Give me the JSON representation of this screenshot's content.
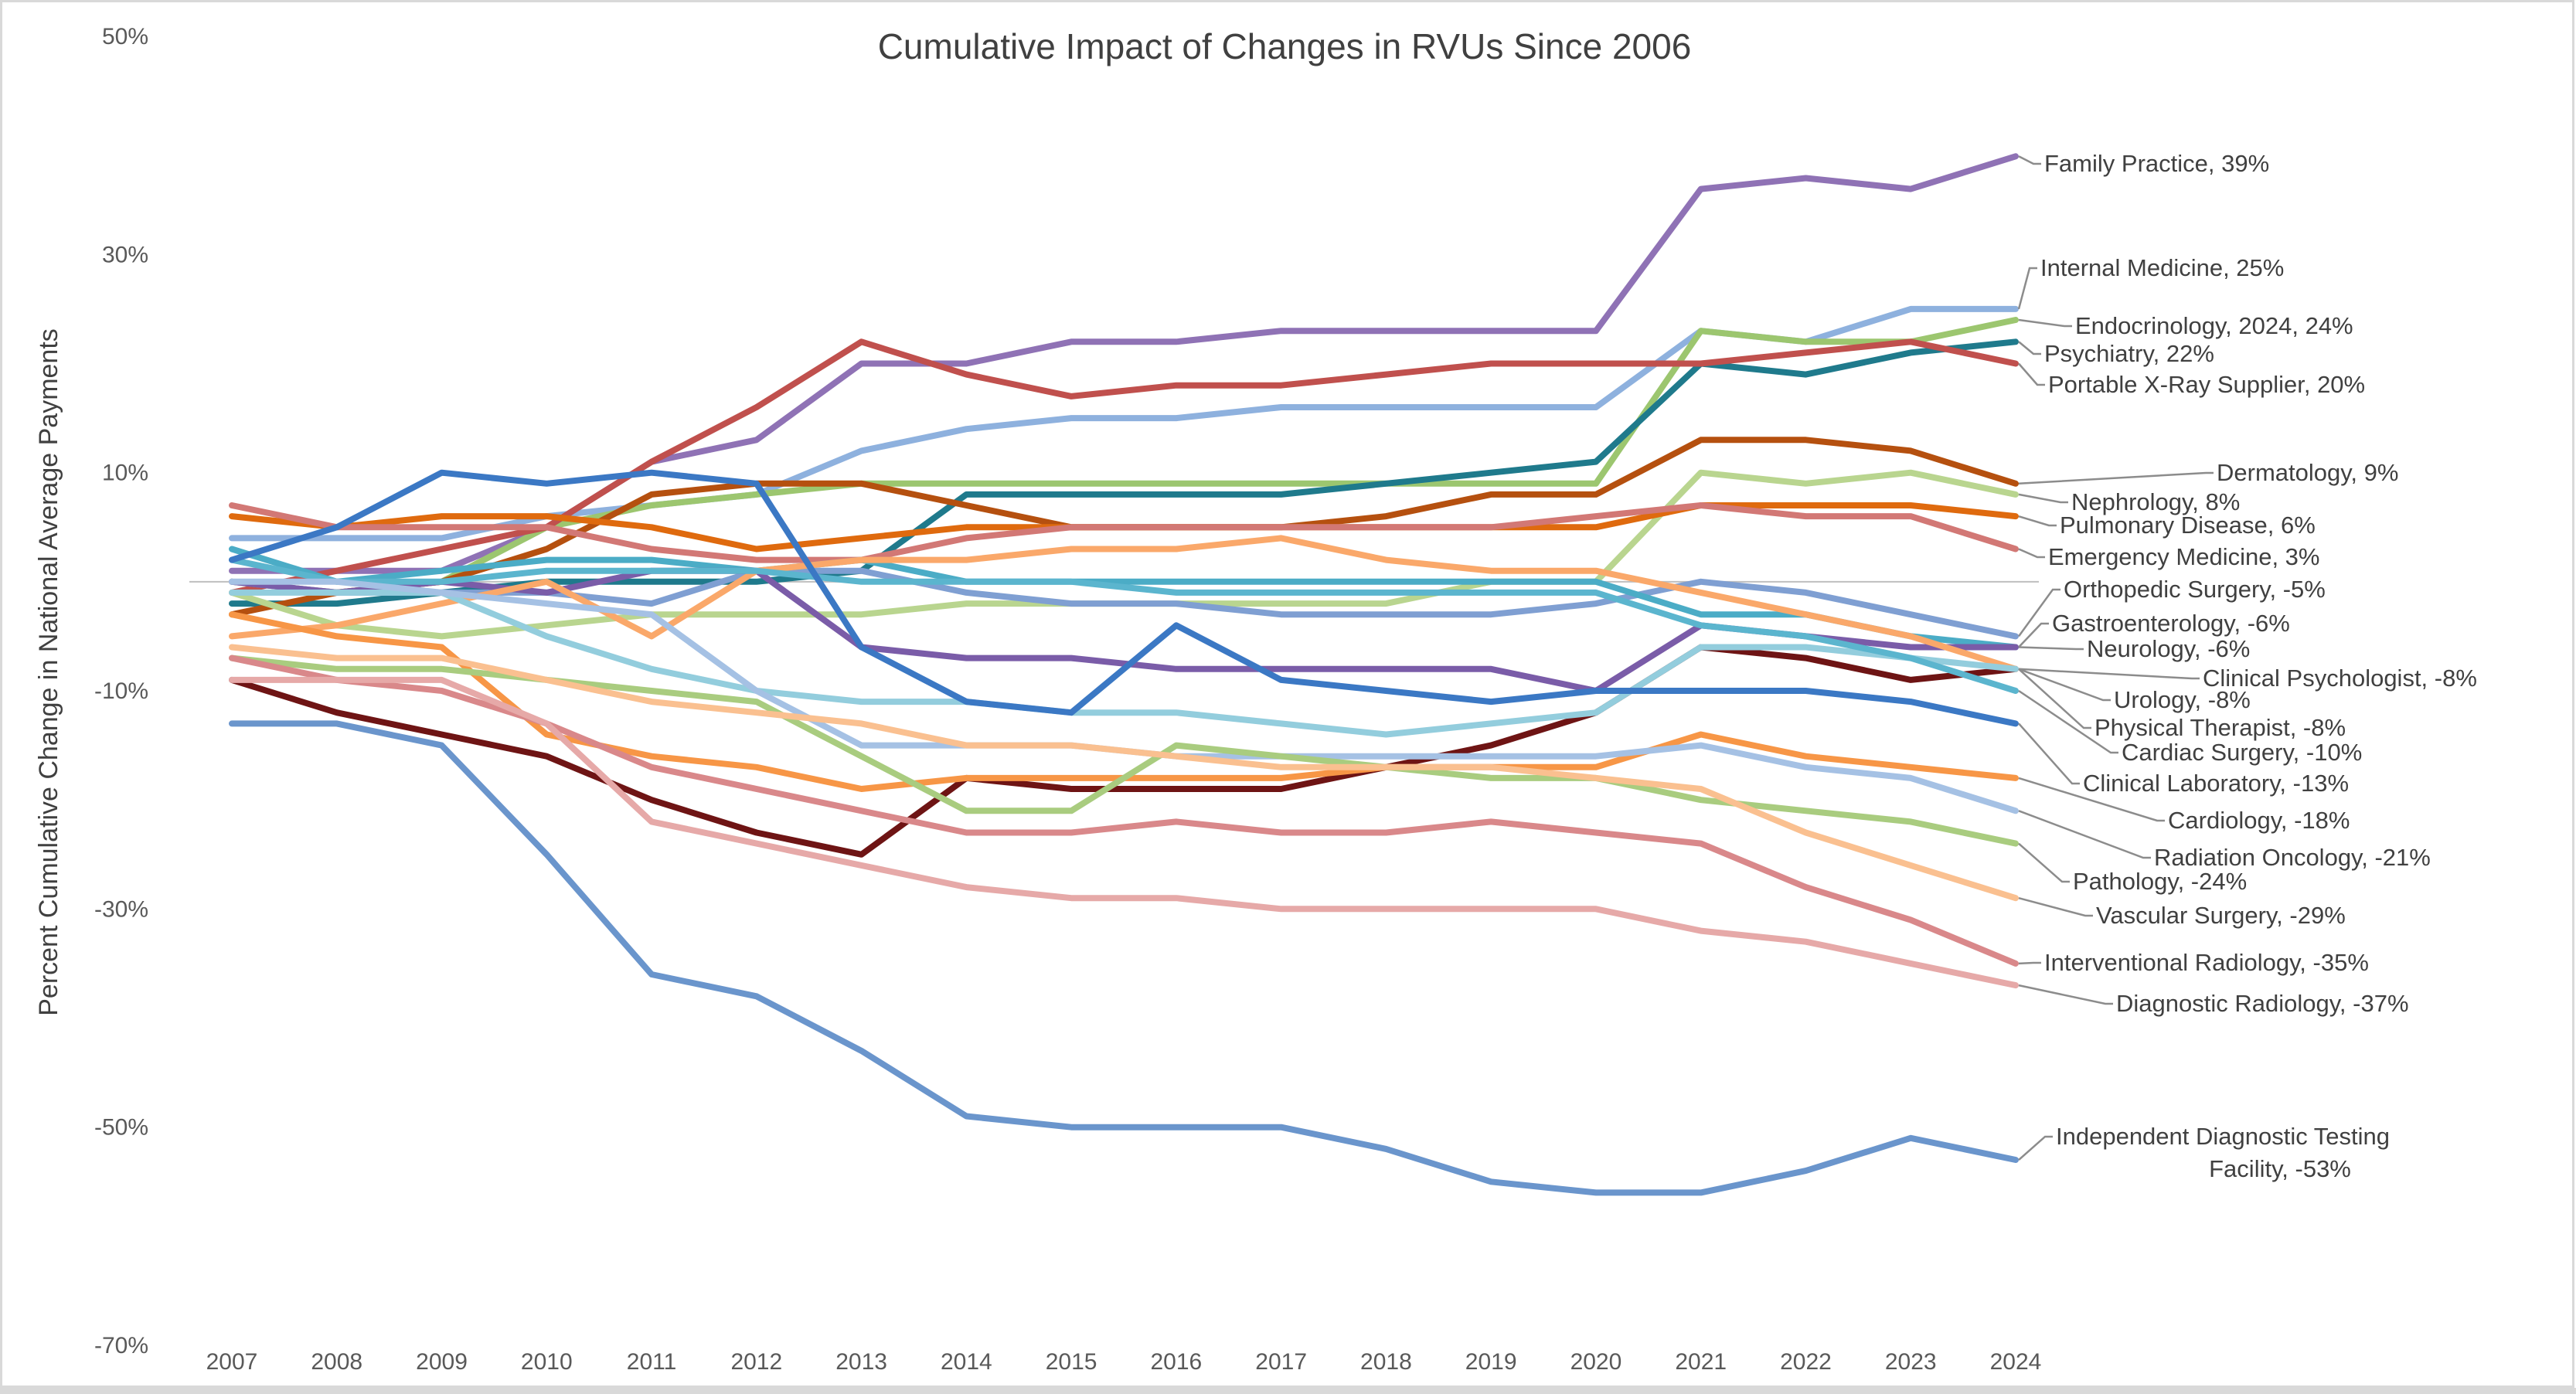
{
  "chart_data": {
    "type": "line",
    "title": "Cumulative Impact of Changes in RVUs Since 2006",
    "xlabel": "",
    "ylabel": "Percent Cumulative Change in National Average Payments",
    "ylim": [
      -70,
      50
    ],
    "yticks": [
      50,
      30,
      10,
      -10,
      -30,
      -50,
      -70
    ],
    "ytick_labels": [
      "50%",
      "30%",
      "10%",
      "-10%",
      "-30%",
      "-50%",
      "-70%"
    ],
    "grid": false,
    "zero_line": true,
    "legend": "data-labels-right",
    "x": [
      "2007",
      "2008",
      "2009",
      "2010",
      "2011",
      "2012",
      "2013",
      "2014",
      "2015",
      "2016",
      "2017",
      "2018",
      "2019",
      "2020",
      "2021",
      "2022",
      "2023",
      "2024"
    ],
    "series": [
      {
        "name": "Family Practice",
        "label": "Family Practice, 39%",
        "color": "#8F72B5",
        "values": [
          1,
          1,
          1,
          5,
          11,
          13,
          20,
          20,
          22,
          22,
          23,
          23,
          23,
          23,
          36,
          37,
          36,
          39
        ]
      },
      {
        "name": "Internal Medicine",
        "label": "Internal Medicine, 25%",
        "color": "#8EB1DE",
        "values": [
          4,
          4,
          4,
          6,
          7,
          8,
          12,
          14,
          15,
          15,
          16,
          16,
          16,
          16,
          23,
          22,
          25,
          25
        ]
      },
      {
        "name": "Endocrinology",
        "label": "Endocrinology, 2024, 24%",
        "color": "#9CC66F",
        "values": [
          0,
          -1,
          0,
          5,
          7,
          8,
          9,
          9,
          9,
          9,
          9,
          9,
          9,
          9,
          23,
          22,
          22,
          24
        ]
      },
      {
        "name": "Psychiatry",
        "label": "Psychiatry, 22%",
        "color": "#1F7A8C",
        "values": [
          -2,
          -2,
          -1,
          0,
          0,
          0,
          1,
          8,
          8,
          8,
          8,
          9,
          10,
          11,
          20,
          19,
          21,
          22
        ]
      },
      {
        "name": "Portable X-Ray Supplier",
        "label": "Portable X-Ray Supplier, 20%",
        "color": "#C0504D",
        "values": [
          -1,
          1,
          3,
          5,
          11,
          16,
          22,
          19,
          17,
          18,
          18,
          19,
          20,
          20,
          20,
          21,
          22,
          20
        ]
      },
      {
        "name": "Dermatology",
        "label": "Dermatology, 9%",
        "color": "#B5500F",
        "values": [
          -3,
          -1,
          0,
          3,
          8,
          9,
          9,
          7,
          5,
          5,
          5,
          6,
          8,
          8,
          13,
          13,
          12,
          9
        ]
      },
      {
        "name": "Nephrology",
        "label": "Nephrology, 8%",
        "color": "#B9D58F",
        "values": [
          -1,
          -4,
          -5,
          -4,
          -3,
          -3,
          -3,
          -2,
          -2,
          -2,
          -2,
          -2,
          0,
          0,
          10,
          9,
          10,
          8
        ]
      },
      {
        "name": "Pulmonary Disease",
        "label": "Pulmonary Disease, 6%",
        "color": "#DF6A0E",
        "values": [
          6,
          5,
          6,
          6,
          5,
          3,
          4,
          5,
          5,
          5,
          5,
          5,
          5,
          5,
          7,
          7,
          7,
          6
        ]
      },
      {
        "name": "Emergency Medicine",
        "label": "Emergency Medicine, 3%",
        "color": "#D27875",
        "values": [
          7,
          5,
          5,
          5,
          3,
          2,
          2,
          4,
          5,
          5,
          5,
          5,
          5,
          6,
          7,
          6,
          6,
          3
        ]
      },
      {
        "name": "Orthopedic Surgery",
        "label": "Orthopedic Surgery, -5%",
        "color": "#7F9FD2",
        "values": [
          0,
          -1,
          -1,
          -1,
          -2,
          1,
          1,
          -1,
          -2,
          -2,
          -3,
          -3,
          -3,
          -2,
          0,
          -1,
          -3,
          -5
        ]
      },
      {
        "name": "Gastroenterology",
        "label": "Gastroenterology, -6%",
        "color": "#4BACC6",
        "values": [
          3,
          0,
          1,
          2,
          2,
          1,
          2,
          0,
          0,
          0,
          0,
          0,
          0,
          0,
          -3,
          -3,
          -5,
          -6
        ]
      },
      {
        "name": "Neurology",
        "label": "Neurology, -6%",
        "color": "#7A5CA8",
        "values": [
          0,
          -1,
          0,
          -1,
          1,
          1,
          -6,
          -7,
          -7,
          -8,
          -8,
          -8,
          -8,
          -10,
          -4,
          -5,
          -6,
          -6
        ]
      },
      {
        "name": "Clinical Psychologist",
        "label": "Clinical Psychologist, -8%",
        "color": "#6E1414",
        "values": [
          -9,
          -12,
          -14,
          -16,
          -20,
          -23,
          -25,
          -18,
          -19,
          -19,
          -19,
          -17,
          -15,
          -12,
          -6,
          -7,
          -9,
          -8
        ]
      },
      {
        "name": "Urology",
        "label": "Urology, -8%",
        "color": "#FAA86A",
        "values": [
          -5,
          -4,
          -2,
          0,
          -5,
          1,
          2,
          2,
          3,
          3,
          4,
          2,
          1,
          1,
          -1,
          -3,
          -5,
          -8
        ]
      },
      {
        "name": "Physical Therapist",
        "label": "Physical Therapist, -8%",
        "color": "#93CDDD",
        "values": [
          -1,
          -1,
          -1,
          -5,
          -8,
          -10,
          -11,
          -11,
          -12,
          -12,
          -13,
          -14,
          -13,
          -12,
          -6,
          -6,
          -7,
          -8
        ]
      },
      {
        "name": "Cardiac Surgery",
        "label": "Cardiac Surgery, -10%",
        "color": "#5BB5CE",
        "values": [
          2,
          0,
          0,
          1,
          1,
          1,
          0,
          0,
          0,
          -1,
          -1,
          -1,
          -1,
          -1,
          -4,
          -5,
          -7,
          -10
        ]
      },
      {
        "name": "Clinical Laboratory",
        "label": "Clinical Laboratory, -13%",
        "color": "#3B78C4",
        "values": [
          2,
          5,
          10,
          9,
          10,
          9,
          -6,
          -11,
          -12,
          -4,
          -9,
          -10,
          -11,
          -10,
          -10,
          -10,
          -11,
          -13
        ]
      },
      {
        "name": "Cardiology",
        "label": "Cardiology, -18%",
        "color": "#F79646",
        "values": [
          -3,
          -5,
          -6,
          -14,
          -16,
          -17,
          -19,
          -18,
          -18,
          -18,
          -18,
          -17,
          -17,
          -17,
          -14,
          -16,
          -17,
          -18
        ]
      },
      {
        "name": "Radiation Oncology",
        "label": "Radiation Oncology, -21%",
        "color": "#A5C1E4",
        "values": [
          0,
          0,
          -1,
          -2,
          -3,
          -10,
          -15,
          -15,
          -15,
          -16,
          -16,
          -16,
          -16,
          -16,
          -15,
          -17,
          -18,
          -21
        ]
      },
      {
        "name": "Pathology",
        "label": "Pathology, -24%",
        "color": "#A9CC7F",
        "values": [
          -7,
          -8,
          -8,
          -9,
          -10,
          -11,
          -16,
          -21,
          -21,
          -15,
          -16,
          -17,
          -18,
          -18,
          -20,
          -21,
          -22,
          -24
        ]
      },
      {
        "name": "Vascular Surgery",
        "label": "Vascular Surgery, -29%",
        "color": "#FAC090",
        "values": [
          -6,
          -7,
          -7,
          -9,
          -11,
          -12,
          -13,
          -15,
          -15,
          -16,
          -17,
          -17,
          -17,
          -18,
          -19,
          -23,
          -26,
          -29
        ]
      },
      {
        "name": "Interventional Radiology",
        "label": "Interventional Radiology, -35%",
        "color": "#D9888A",
        "values": [
          -7,
          -9,
          -10,
          -13,
          -17,
          -19,
          -21,
          -23,
          -23,
          -22,
          -23,
          -23,
          -22,
          -23,
          -24,
          -28,
          -31,
          -35
        ]
      },
      {
        "name": "Diagnostic Radiology",
        "label": "Diagnostic Radiology, -37%",
        "color": "#E6A9A8",
        "values": [
          -9,
          -9,
          -9,
          -13,
          -22,
          -24,
          -26,
          -28,
          -29,
          -29,
          -30,
          -30,
          -30,
          -30,
          -32,
          -33,
          -35,
          -37
        ]
      },
      {
        "name": "Independent Diagnostic Testing Facility",
        "label": "Independent Diagnostic Testing Facility, -53%",
        "label_lines": [
          "Independent Diagnostic Testing",
          "Facility, -53%"
        ],
        "color": "#6A95CC",
        "values": [
          -13,
          -13,
          -15,
          -25,
          -36,
          -38,
          -43,
          -49,
          -50,
          -50,
          -50,
          -52,
          -55,
          -56,
          -56,
          -54,
          -51,
          -53
        ]
      }
    ]
  }
}
